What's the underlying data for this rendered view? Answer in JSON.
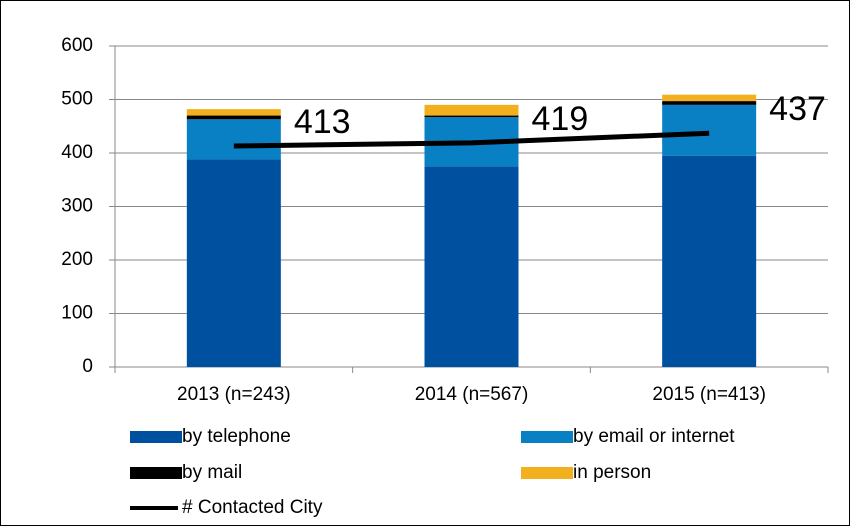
{
  "chart_data": {
    "type": "bar",
    "categories": [
      "2013 (n=243)",
      "2014 (n=567)",
      "2015 (n=413)"
    ],
    "series": [
      {
        "name": "by telephone",
        "color": "#0050a0",
        "values": [
          388,
          375,
          395
        ]
      },
      {
        "name": "by email or internet",
        "color": "#0a80c4",
        "values": [
          75,
          92,
          95
        ]
      },
      {
        "name": "by mail",
        "color": "#000000",
        "values": [
          7,
          3,
          7
        ]
      },
      {
        "name": "in person",
        "color": "#f2b01e",
        "values": [
          12,
          20,
          12
        ]
      },
      {
        "name": "# Contacted City",
        "type": "line",
        "color": "#000000",
        "values": [
          413,
          419,
          437
        ]
      }
    ],
    "ylim": [
      0,
      600
    ],
    "yticks": [
      0,
      100,
      200,
      300,
      400,
      500,
      600
    ],
    "grid": true
  }
}
